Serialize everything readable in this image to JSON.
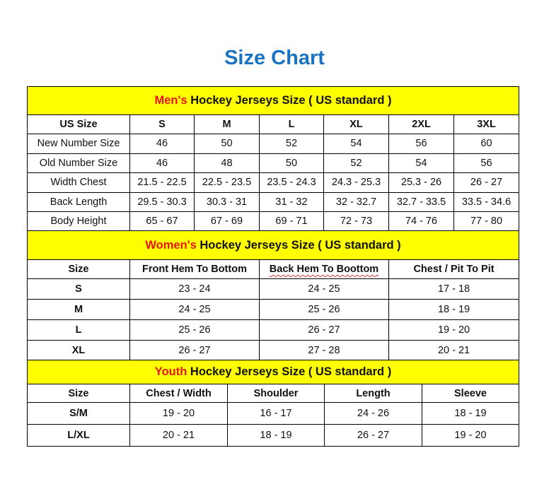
{
  "title": "Size Chart",
  "men": {
    "label_red": "Men's",
    "label_rest": " Hockey Jerseys Size ( US standard )",
    "headers": [
      "US Size",
      "S",
      "M",
      "L",
      "XL",
      "2XL",
      "3XL"
    ],
    "rows": [
      [
        "New Number Size",
        "46",
        "50",
        "52",
        "54",
        "56",
        "60"
      ],
      [
        "Old Number Size",
        "46",
        "48",
        "50",
        "52",
        "54",
        "56"
      ],
      [
        "Width Chest",
        "21.5 - 22.5",
        "22.5 - 23.5",
        "23.5 - 24.3",
        "24.3 - 25.3",
        "25.3 - 26",
        "26 - 27"
      ],
      [
        "Back Length",
        "29.5 - 30.3",
        "30.3 - 31",
        "31 - 32",
        "32 - 32.7",
        "32.7 - 33.5",
        "33.5 - 34.6"
      ],
      [
        "Body Height",
        "65 - 67",
        "67 - 69",
        "69 - 71",
        "72 - 73",
        "74 - 76",
        "77 - 80"
      ]
    ]
  },
  "women": {
    "label_red": "Women's",
    "label_rest": " Hockey Jerseys Size ( US standard )",
    "headers": [
      "Size",
      "Front Hem To Bottom",
      "Back Hem To Boottom",
      "Chest / Pit To Pit"
    ],
    "rows": [
      [
        "S",
        "23 - 24",
        "24 - 25",
        "17 - 18"
      ],
      [
        "M",
        "24 - 25",
        "25 - 26",
        "18 - 19"
      ],
      [
        "L",
        "25 - 26",
        "26 - 27",
        "19 - 20"
      ],
      [
        "XL",
        "26 - 27",
        "27 - 28",
        "20 - 21"
      ]
    ]
  },
  "youth": {
    "label_red": "Youth",
    "label_rest": " Hockey Jerseys Size ( US standard )",
    "headers": [
      "Size",
      "Chest / Width",
      "Shoulder",
      "Length",
      "Sleeve"
    ],
    "rows": [
      [
        "S/M",
        "19 - 20",
        "16 - 17",
        "24 - 26",
        "18 - 19"
      ],
      [
        "L/XL",
        "20 - 21",
        "18 - 19",
        "26 - 27",
        "19 - 20"
      ]
    ]
  }
}
